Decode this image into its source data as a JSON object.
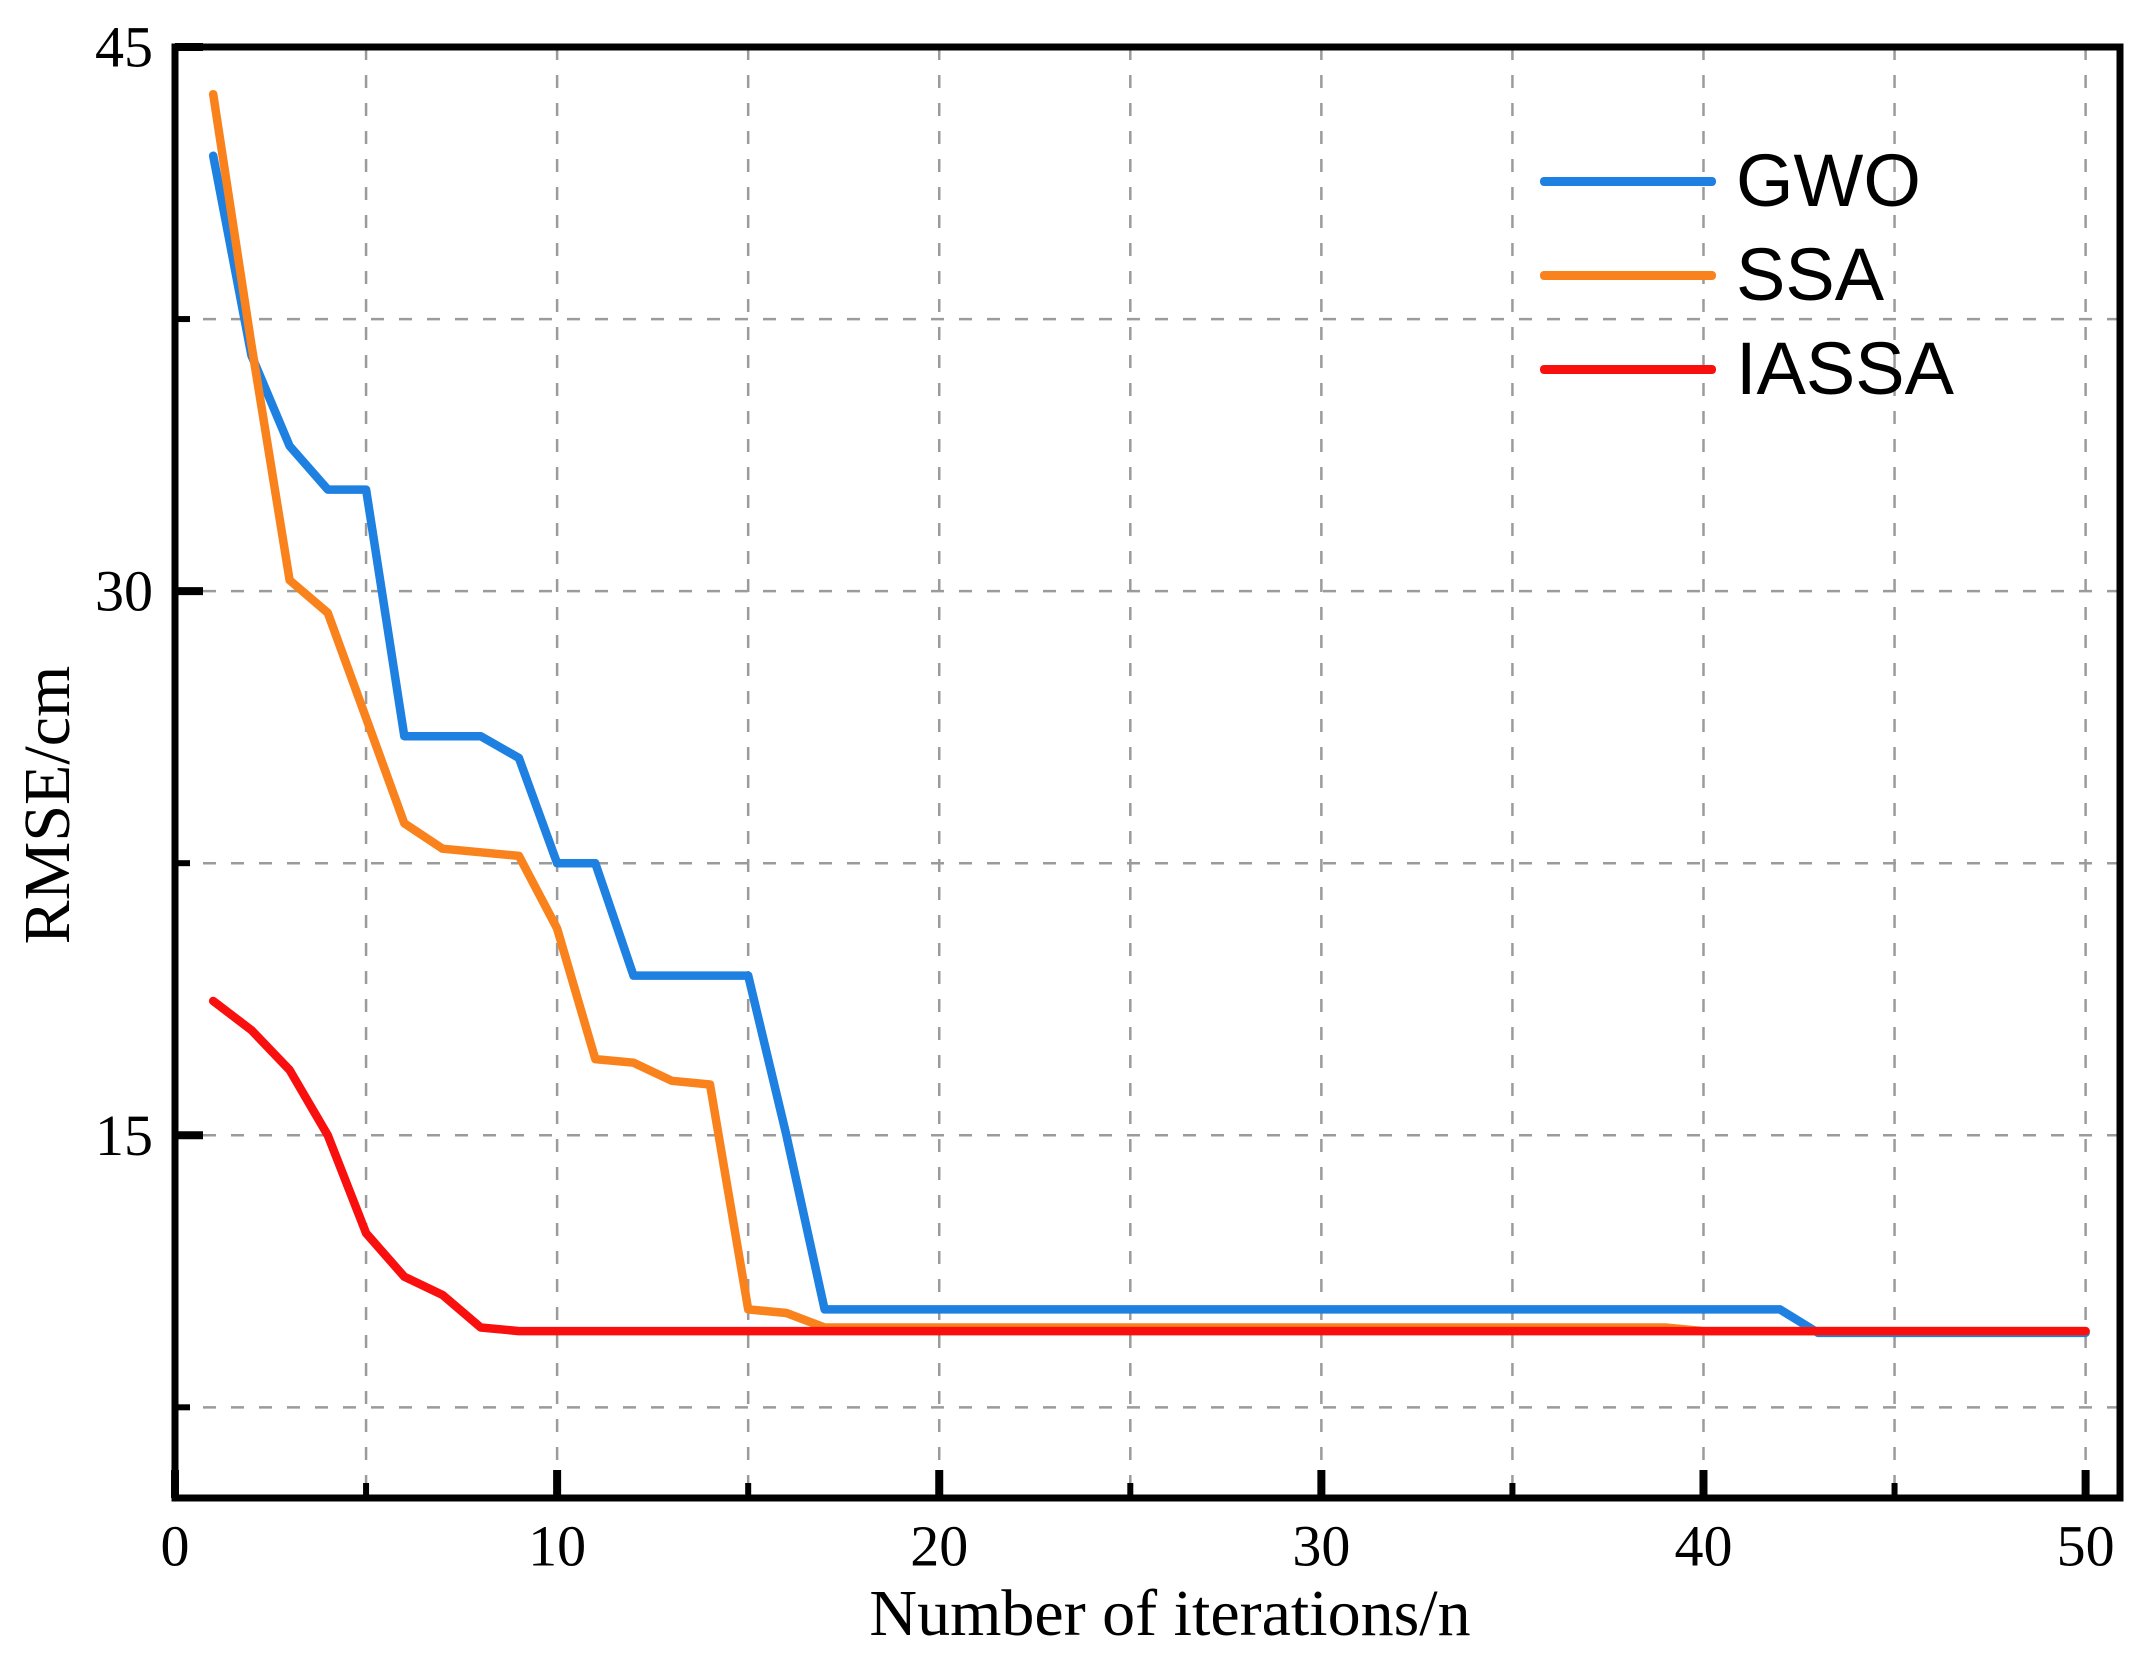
{
  "chart_data": {
    "type": "line",
    "title": "",
    "xlabel": "Number of iterations/n",
    "ylabel": "RMSE/cm",
    "xlim": [
      0,
      50.9
    ],
    "ylim": [
      5,
      45
    ],
    "grid": "dashed",
    "grid_color": "#9b9b9b",
    "axis_color": "#000000",
    "legend_position": "upper-right-inside",
    "x_major_ticks": [
      0,
      10,
      20,
      30,
      40,
      50
    ],
    "x_minor_ticks": [
      5,
      15,
      25,
      35,
      45
    ],
    "y_major_ticks": [
      45,
      30,
      15
    ],
    "y_minor_ticks": [
      37.5,
      22.5,
      7.5
    ],
    "x_gridlines": [
      5,
      10,
      15,
      20,
      25,
      30,
      35,
      40,
      45,
      50
    ],
    "y_gridlines": [
      37.5,
      30,
      22.5,
      15,
      7.5
    ],
    "x": [
      1,
      2,
      3,
      4,
      5,
      6,
      7,
      8,
      9,
      10,
      11,
      12,
      13,
      14,
      15,
      16,
      17,
      18,
      19,
      20,
      21,
      22,
      23,
      24,
      25,
      26,
      27,
      28,
      29,
      30,
      31,
      32,
      33,
      34,
      35,
      36,
      37,
      38,
      39,
      40,
      41,
      42,
      43,
      44,
      45,
      46,
      47,
      48,
      49,
      50
    ],
    "series": [
      {
        "name": "GWO",
        "color": "#1E80E0",
        "values": [
          42.0,
          36.5,
          34.0,
          32.8,
          32.8,
          26.0,
          26.0,
          26.0,
          25.4,
          22.5,
          22.5,
          19.4,
          19.4,
          19.4,
          19.4,
          15.0,
          10.2,
          10.2,
          10.2,
          10.2,
          10.2,
          10.2,
          10.2,
          10.2,
          10.2,
          10.2,
          10.2,
          10.2,
          10.2,
          10.2,
          10.2,
          10.2,
          10.2,
          10.2,
          10.2,
          10.2,
          10.2,
          10.2,
          10.2,
          10.2,
          10.2,
          10.2,
          9.55,
          9.55,
          9.55,
          9.55,
          9.55,
          9.55,
          9.55,
          9.55
        ]
      },
      {
        "name": "SSA",
        "color": "#F9821C",
        "values": [
          43.7,
          36.8,
          30.3,
          29.4,
          26.5,
          23.6,
          22.9,
          22.8,
          22.7,
          20.7,
          17.1,
          17.0,
          16.5,
          16.4,
          10.2,
          10.1,
          9.7,
          9.7,
          9.7,
          9.7,
          9.7,
          9.7,
          9.7,
          9.7,
          9.7,
          9.7,
          9.7,
          9.7,
          9.7,
          9.7,
          9.7,
          9.7,
          9.7,
          9.7,
          9.7,
          9.7,
          9.7,
          9.7,
          9.7,
          9.6,
          9.6,
          9.6,
          9.6,
          9.6,
          9.6,
          9.6,
          9.6,
          9.6,
          9.6,
          9.6
        ]
      },
      {
        "name": "IASSA",
        "color": "#FA0F0F",
        "values": [
          18.7,
          17.9,
          16.8,
          15.0,
          12.3,
          11.1,
          10.6,
          9.7,
          9.6,
          9.6,
          9.6,
          9.6,
          9.6,
          9.6,
          9.6,
          9.6,
          9.6,
          9.6,
          9.6,
          9.6,
          9.6,
          9.6,
          9.6,
          9.6,
          9.6,
          9.6,
          9.6,
          9.6,
          9.6,
          9.6,
          9.6,
          9.6,
          9.6,
          9.6,
          9.6,
          9.6,
          9.6,
          9.6,
          9.6,
          9.6,
          9.6,
          9.6,
          9.6,
          9.6,
          9.6,
          9.6,
          9.6,
          9.6,
          9.6,
          9.6
        ]
      }
    ]
  }
}
